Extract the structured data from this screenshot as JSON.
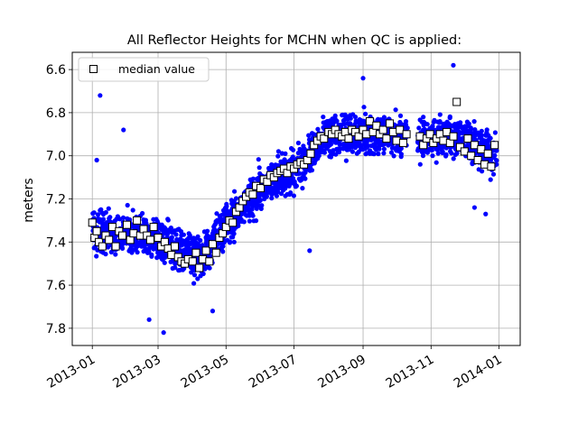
{
  "chart_data": {
    "type": "scatter",
    "title": "All Reflector Heights for MCHN when QC is applied:",
    "xlabel": "",
    "ylabel": "meters",
    "x_axis": "date",
    "xlim": [
      "2012-12-14",
      "2014-01-20"
    ],
    "ylim": [
      7.88,
      6.52
    ],
    "y_inverted": true,
    "x_ticks": [
      "2013-01-01",
      "2013-03-01",
      "2013-05-01",
      "2013-07-01",
      "2013-09-01",
      "2013-11-01",
      "2014-01-01"
    ],
    "x_tick_labels": [
      "2013-01",
      "2013-03",
      "2013-05",
      "2013-07",
      "2013-09",
      "2013-11",
      "2014-01"
    ],
    "y_ticks": [
      6.6,
      6.8,
      7.0,
      7.2,
      7.4,
      7.6,
      7.8
    ],
    "y_tick_labels": [
      "6.6",
      "6.8",
      "7.0",
      "7.2",
      "7.4",
      "7.6",
      "7.8"
    ],
    "grid": true,
    "legend": {
      "placement": "top-left",
      "entries": [
        "median value"
      ]
    },
    "series": [
      {
        "name": "median value",
        "marker": "square",
        "color": "#000000",
        "fill": "#ffffff",
        "points": [
          {
            "x": "2013-01-01",
            "y": 7.31
          },
          {
            "x": "2013-01-03",
            "y": 7.38
          },
          {
            "x": "2013-01-05",
            "y": 7.35
          },
          {
            "x": "2013-01-07",
            "y": 7.4
          },
          {
            "x": "2013-01-10",
            "y": 7.42
          },
          {
            "x": "2013-01-13",
            "y": 7.37
          },
          {
            "x": "2013-01-16",
            "y": 7.39
          },
          {
            "x": "2013-01-19",
            "y": 7.33
          },
          {
            "x": "2013-01-22",
            "y": 7.42
          },
          {
            "x": "2013-01-25",
            "y": 7.35
          },
          {
            "x": "2013-01-28",
            "y": 7.37
          },
          {
            "x": "2013-02-01",
            "y": 7.32
          },
          {
            "x": "2013-02-04",
            "y": 7.39
          },
          {
            "x": "2013-02-07",
            "y": 7.36
          },
          {
            "x": "2013-02-10",
            "y": 7.3
          },
          {
            "x": "2013-02-13",
            "y": 7.37
          },
          {
            "x": "2013-02-16",
            "y": 7.34
          },
          {
            "x": "2013-02-19",
            "y": 7.37
          },
          {
            "x": "2013-02-22",
            "y": 7.39
          },
          {
            "x": "2013-02-25",
            "y": 7.33
          },
          {
            "x": "2013-03-01",
            "y": 7.38
          },
          {
            "x": "2013-03-04",
            "y": 7.42
          },
          {
            "x": "2013-03-07",
            "y": 7.4
          },
          {
            "x": "2013-03-10",
            "y": 7.43
          },
          {
            "x": "2013-03-13",
            "y": 7.46
          },
          {
            "x": "2013-03-16",
            "y": 7.42
          },
          {
            "x": "2013-03-19",
            "y": 7.47
          },
          {
            "x": "2013-03-22",
            "y": 7.49
          },
          {
            "x": "2013-03-25",
            "y": 7.5
          },
          {
            "x": "2013-03-28",
            "y": 7.48
          },
          {
            "x": "2013-04-01",
            "y": 7.49
          },
          {
            "x": "2013-04-04",
            "y": 7.45
          },
          {
            "x": "2013-04-07",
            "y": 7.52
          },
          {
            "x": "2013-04-10",
            "y": 7.48
          },
          {
            "x": "2013-04-13",
            "y": 7.44
          },
          {
            "x": "2013-04-16",
            "y": 7.49
          },
          {
            "x": "2013-04-19",
            "y": 7.41
          },
          {
            "x": "2013-04-22",
            "y": 7.45
          },
          {
            "x": "2013-04-25",
            "y": 7.38
          },
          {
            "x": "2013-04-28",
            "y": 7.36
          },
          {
            "x": "2013-05-01",
            "y": 7.33
          },
          {
            "x": "2013-05-04",
            "y": 7.3
          },
          {
            "x": "2013-05-07",
            "y": 7.31
          },
          {
            "x": "2013-05-10",
            "y": 7.26
          },
          {
            "x": "2013-05-13",
            "y": 7.24
          },
          {
            "x": "2013-05-16",
            "y": 7.21
          },
          {
            "x": "2013-05-19",
            "y": 7.19
          },
          {
            "x": "2013-05-22",
            "y": 7.17
          },
          {
            "x": "2013-05-25",
            "y": 7.18
          },
          {
            "x": "2013-05-28",
            "y": 7.14
          },
          {
            "x": "2013-06-01",
            "y": 7.15
          },
          {
            "x": "2013-06-04",
            "y": 7.11
          },
          {
            "x": "2013-06-07",
            "y": 7.12
          },
          {
            "x": "2013-06-10",
            "y": 7.09
          },
          {
            "x": "2013-06-13",
            "y": 7.1
          },
          {
            "x": "2013-06-16",
            "y": 7.08
          },
          {
            "x": "2013-06-19",
            "y": 7.07
          },
          {
            "x": "2013-06-22",
            "y": 7.06
          },
          {
            "x": "2013-06-25",
            "y": 7.08
          },
          {
            "x": "2013-06-28",
            "y": 7.05
          },
          {
            "x": "2013-07-01",
            "y": 7.06
          },
          {
            "x": "2013-07-04",
            "y": 7.04
          },
          {
            "x": "2013-07-07",
            "y": 7.03
          },
          {
            "x": "2013-07-10",
            "y": 7.04
          },
          {
            "x": "2013-07-13",
            "y": 7.02
          },
          {
            "x": "2013-07-16",
            "y": 6.99
          },
          {
            "x": "2013-07-19",
            "y": 6.95
          },
          {
            "x": "2013-07-22",
            "y": 6.93
          },
          {
            "x": "2013-07-25",
            "y": 6.91
          },
          {
            "x": "2013-07-28",
            "y": 6.92
          },
          {
            "x": "2013-08-01",
            "y": 6.89
          },
          {
            "x": "2013-08-04",
            "y": 6.9
          },
          {
            "x": "2013-08-07",
            "y": 6.88
          },
          {
            "x": "2013-08-10",
            "y": 6.9
          },
          {
            "x": "2013-08-13",
            "y": 6.91
          },
          {
            "x": "2013-08-16",
            "y": 6.89
          },
          {
            "x": "2013-08-19",
            "y": 6.92
          },
          {
            "x": "2013-08-22",
            "y": 6.88
          },
          {
            "x": "2013-08-25",
            "y": 6.89
          },
          {
            "x": "2013-08-28",
            "y": 6.91
          },
          {
            "x": "2013-09-01",
            "y": 6.88
          },
          {
            "x": "2013-09-04",
            "y": 6.9
          },
          {
            "x": "2013-09-07",
            "y": 6.84
          },
          {
            "x": "2013-09-10",
            "y": 6.89
          },
          {
            "x": "2013-09-13",
            "y": 6.86
          },
          {
            "x": "2013-09-16",
            "y": 6.9
          },
          {
            "x": "2013-09-19",
            "y": 6.88
          },
          {
            "x": "2013-09-22",
            "y": 6.92
          },
          {
            "x": "2013-09-25",
            "y": 6.85
          },
          {
            "x": "2013-09-28",
            "y": 6.89
          },
          {
            "x": "2013-10-01",
            "y": 6.93
          },
          {
            "x": "2013-10-04",
            "y": 6.88
          },
          {
            "x": "2013-10-07",
            "y": 6.94
          },
          {
            "x": "2013-10-10",
            "y": 6.9
          },
          {
            "x": "2013-10-22",
            "y": 6.91
          },
          {
            "x": "2013-10-25",
            "y": 6.95
          },
          {
            "x": "2013-10-28",
            "y": 6.92
          },
          {
            "x": "2013-10-31",
            "y": 6.9
          },
          {
            "x": "2013-11-03",
            "y": 6.94
          },
          {
            "x": "2013-11-06",
            "y": 6.92
          },
          {
            "x": "2013-11-09",
            "y": 6.9
          },
          {
            "x": "2013-11-12",
            "y": 6.93
          },
          {
            "x": "2013-11-15",
            "y": 6.89
          },
          {
            "x": "2013-11-18",
            "y": 6.94
          },
          {
            "x": "2013-11-21",
            "y": 6.91
          },
          {
            "x": "2013-11-24",
            "y": 6.75
          },
          {
            "x": "2013-11-27",
            "y": 6.96
          },
          {
            "x": "2013-12-01",
            "y": 6.98
          },
          {
            "x": "2013-12-04",
            "y": 6.92
          },
          {
            "x": "2013-12-07",
            "y": 7.0
          },
          {
            "x": "2013-12-10",
            "y": 6.95
          },
          {
            "x": "2013-12-13",
            "y": 7.02
          },
          {
            "x": "2013-12-16",
            "y": 6.97
          },
          {
            "x": "2013-12-19",
            "y": 7.04
          },
          {
            "x": "2013-12-22",
            "y": 6.99
          },
          {
            "x": "2013-12-25",
            "y": 7.05
          },
          {
            "x": "2013-12-28",
            "y": 6.95
          }
        ]
      }
    ],
    "scatter_cloud": {
      "color": "#0000ff",
      "marker": "circle",
      "trend": [
        {
          "x": "2013-01-01",
          "y": 7.36
        },
        {
          "x": "2013-02-15",
          "y": 7.36
        },
        {
          "x": "2013-03-20",
          "y": 7.44
        },
        {
          "x": "2013-04-10",
          "y": 7.47
        },
        {
          "x": "2013-05-01",
          "y": 7.32
        },
        {
          "x": "2013-06-01",
          "y": 7.15
        },
        {
          "x": "2013-07-10",
          "y": 7.03
        },
        {
          "x": "2013-08-01",
          "y": 6.9
        },
        {
          "x": "2013-10-10",
          "y": 6.9
        },
        {
          "x": "2013-10-22",
          "y": 6.92
        },
        {
          "x": "2013-11-25",
          "y": 6.92
        },
        {
          "x": "2013-12-28",
          "y": 7.0
        }
      ],
      "gap": [
        "2013-10-11",
        "2013-10-20"
      ],
      "outliers": [
        {
          "x": "2013-01-08",
          "y": 6.72
        },
        {
          "x": "2013-01-05",
          "y": 7.02
        },
        {
          "x": "2013-01-29",
          "y": 6.88
        },
        {
          "x": "2013-03-06",
          "y": 7.82
        },
        {
          "x": "2013-02-21",
          "y": 7.76
        },
        {
          "x": "2013-04-19",
          "y": 7.72
        },
        {
          "x": "2013-11-21",
          "y": 6.58
        },
        {
          "x": "2013-07-15",
          "y": 7.44
        },
        {
          "x": "2013-09-01",
          "y": 6.64
        },
        {
          "x": "2013-12-20",
          "y": 7.27
        },
        {
          "x": "2013-12-10",
          "y": 7.24
        }
      ]
    }
  }
}
